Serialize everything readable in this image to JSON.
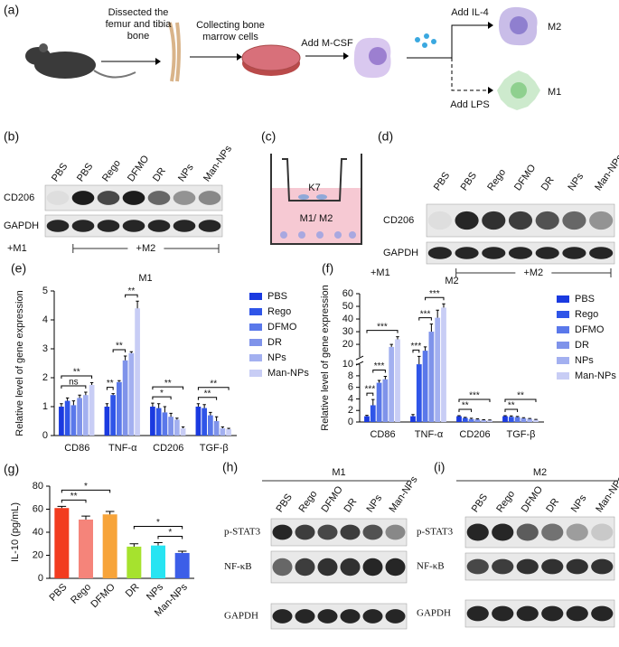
{
  "figure": {
    "a": {
      "label": "(a)",
      "step1": [
        "Dissected the",
        "femur and tibia",
        "bone"
      ],
      "step2": [
        "Collecting bone",
        "marrow cells"
      ],
      "step3": "Add M-CSF",
      "step4": "Add IL-4",
      "step5": "Add LPS",
      "cell_top": "M2",
      "cell_bottom": "M1"
    },
    "b": {
      "label": "(b)",
      "lanes": [
        "PBS",
        "PBS",
        "Rego",
        "DFMO",
        "DR",
        "NPs",
        "Man-NPs"
      ],
      "rows": [
        "CD206",
        "GAPDH"
      ],
      "groups": [
        "+M1",
        "+M2"
      ]
    },
    "c": {
      "label": "(c)",
      "insert": "K7",
      "well": "M1/ M2"
    },
    "d": {
      "label": "(d)",
      "lanes": [
        "PBS",
        "PBS",
        "Rego",
        "DFMO",
        "DR",
        "NPs",
        "Man-NPs"
      ],
      "rows": [
        "CD206",
        "GAPDH"
      ],
      "groups": [
        "+M1",
        "+M2"
      ]
    },
    "h": {
      "label": "(h)",
      "header": "M1",
      "lanes": [
        "PBS",
        "Rego",
        "DFMO",
        "DR",
        "NPs",
        "Man-NPs"
      ],
      "rows": [
        "p-STAT3",
        "NF-κB",
        "GAPDH"
      ]
    },
    "i": {
      "label": "(i)",
      "header": "M2",
      "lanes": [
        "PBS",
        "Rego",
        "DFMO",
        "DR",
        "NPs",
        "Man-NPs"
      ],
      "rows": [
        "p-STAT3",
        "NF-κB",
        "GAPDH"
      ]
    }
  },
  "chart_data": [
    {
      "type": "bar",
      "label": "(e)",
      "title": "M1",
      "ylabel": "Relative level of gene expression",
      "categories": [
        "CD86",
        "TNF-α",
        "CD206",
        "TGF-β"
      ],
      "series": [
        {
          "name": "PBS",
          "color": "#1a3ae0",
          "values": [
            1,
            1,
            1,
            1
          ],
          "errors": [
            0.1,
            0.1,
            0.12,
            0.1
          ]
        },
        {
          "name": "Rego",
          "color": "#2f55e8",
          "values": [
            1.2,
            1.4,
            0.95,
            0.95
          ],
          "errors": [
            0.1,
            0.05,
            0.15,
            0.12
          ]
        },
        {
          "name": "DFMO",
          "color": "#5a78ea",
          "values": [
            1.05,
            1.85,
            0.8,
            0.7
          ],
          "errors": [
            0.15,
            0.05,
            0.2,
            0.1
          ]
        },
        {
          "name": "DR",
          "color": "#7f93ea",
          "values": [
            1.3,
            2.6,
            0.65,
            0.5
          ],
          "errors": [
            0.1,
            0.15,
            0.12,
            0.15
          ]
        },
        {
          "name": "NPs",
          "color": "#a3b0f0",
          "values": [
            1.4,
            2.85,
            0.55,
            0.25
          ],
          "errors": [
            0.1,
            0.05,
            0.05,
            0.05
          ]
        },
        {
          "name": "Man-NPs",
          "color": "#c8cdf5",
          "values": [
            1.75,
            4.4,
            0.25,
            0.22
          ],
          "errors": [
            0.08,
            0.25,
            0.05,
            0.03
          ]
        }
      ],
      "ylim": [
        0,
        5
      ],
      "yticks": [
        0,
        1,
        2,
        3,
        4,
        5
      ],
      "annotations": [
        {
          "group": 0,
          "from": 0,
          "to": 4,
          "label": "ns"
        },
        {
          "group": 0,
          "from": 0,
          "to": 5,
          "label": "**"
        },
        {
          "group": 1,
          "from": 0,
          "to": 1,
          "label": "**"
        },
        {
          "group": 1,
          "from": 1,
          "to": 3,
          "label": "**"
        },
        {
          "group": 1,
          "from": 3,
          "to": 5,
          "label": "**"
        },
        {
          "group": 2,
          "from": 0,
          "to": 3,
          "label": "*"
        },
        {
          "group": 2,
          "from": 0,
          "to": 5,
          "label": "**"
        },
        {
          "group": 3,
          "from": 0,
          "to": 3,
          "label": "**"
        },
        {
          "group": 3,
          "from": 0,
          "to": 5,
          "label": "**"
        }
      ]
    },
    {
      "type": "bar",
      "label": "(f)",
      "title": "M2",
      "ylabel": "Relative level of gene expression",
      "categories": [
        "CD86",
        "TNF-α",
        "CD206",
        "TGF-β"
      ],
      "series": [
        {
          "name": "PBS",
          "color": "#1a3ae0",
          "values": [
            1,
            1,
            1,
            1
          ],
          "errors": [
            0.15,
            0.3,
            0.1,
            0.1
          ]
        },
        {
          "name": "Rego",
          "color": "#2f55e8",
          "values": [
            2.9,
            10,
            0.7,
            0.9
          ],
          "errors": [
            1,
            0.5,
            0.1,
            0.15
          ]
        },
        {
          "name": "DFMO",
          "color": "#5a78ea",
          "values": [
            6.8,
            15,
            0.5,
            0.85
          ],
          "errors": [
            0.4,
            3,
            0.15,
            0.1
          ]
        },
        {
          "name": "DR",
          "color": "#7f93ea",
          "values": [
            7.4,
            30,
            0.45,
            0.65
          ],
          "errors": [
            0.5,
            6,
            0.1,
            0.1
          ]
        },
        {
          "name": "NPs",
          "color": "#a3b0f0",
          "values": [
            18,
            41,
            0.35,
            0.55
          ],
          "errors": [
            2,
            6,
            0.05,
            0.05
          ]
        },
        {
          "name": "Man-NPs",
          "color": "#c8cdf5",
          "values": [
            24,
            49,
            0.3,
            0.4
          ],
          "errors": [
            2,
            3,
            0.05,
            0.05
          ]
        }
      ],
      "ylim": [
        0,
        60
      ],
      "ybreak": 10,
      "yticks": [
        0,
        2,
        4,
        6,
        8,
        10,
        20,
        30,
        40,
        50,
        60
      ],
      "annotations": [
        {
          "group": 0,
          "from": 0,
          "to": 1,
          "label": "***"
        },
        {
          "group": 0,
          "from": 1,
          "to": 3,
          "label": "***"
        },
        {
          "group": 0,
          "from": 0,
          "to": 5,
          "label": "***"
        },
        {
          "group": 1,
          "from": 0,
          "to": 1,
          "label": "***"
        },
        {
          "group": 1,
          "from": 1,
          "to": 3,
          "label": "***"
        },
        {
          "group": 1,
          "from": 2,
          "to": 5,
          "label": "***"
        },
        {
          "group": 2,
          "from": 0,
          "to": 2,
          "label": "**"
        },
        {
          "group": 2,
          "from": 0,
          "to": 5,
          "label": "***"
        },
        {
          "group": 3,
          "from": 0,
          "to": 2,
          "label": "**"
        },
        {
          "group": 3,
          "from": 0,
          "to": 5,
          "label": "**"
        }
      ]
    },
    {
      "type": "bar",
      "label": "(g)",
      "ylabel": "IL-10 (pg/mL)",
      "categories": [
        "PBS",
        "Rego",
        "DFMO",
        "DR",
        "NPs",
        "Man-NPs"
      ],
      "values": [
        61,
        51,
        55.5,
        27.5,
        28.5,
        22
      ],
      "errors": [
        1.5,
        3,
        2.5,
        2.5,
        2.5,
        1.5
      ],
      "colors": [
        "#f23c1f",
        "#f5847a",
        "#f7a43a",
        "#a6e22e",
        "#28e4f2",
        "#3c5ee8"
      ],
      "ylim": [
        0,
        80
      ],
      "yticks": [
        0,
        20,
        40,
        60,
        80
      ],
      "xtick_rotation": 45,
      "annotations": [
        {
          "from": 0,
          "to": 1,
          "label": "**"
        },
        {
          "from": 0,
          "to": 2,
          "label": "*"
        },
        {
          "from": 4,
          "to": 5,
          "label": "*"
        },
        {
          "from": 3,
          "to": 5,
          "label": "*"
        }
      ]
    }
  ]
}
